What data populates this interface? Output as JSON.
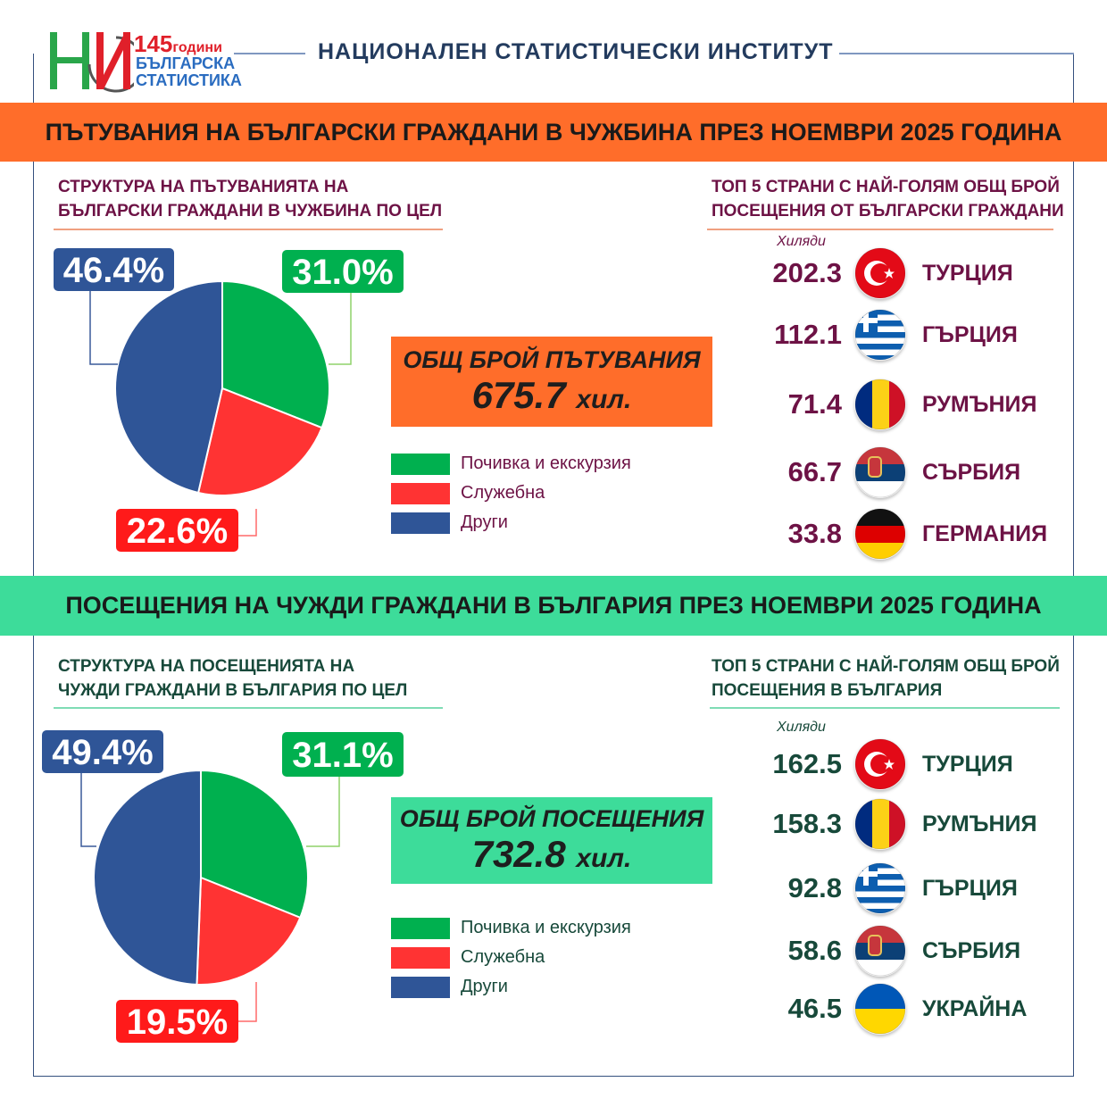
{
  "header": {
    "institute": "НАЦИОНАЛЕН СТАТИСТИЧЕСКИ ИНСТИТУТ",
    "logo_text": [
      "145",
      "години",
      "БЪЛГАРСКА",
      "СТАТИСТИКА"
    ]
  },
  "section1": {
    "title_normal": "ПЪТУВАНИЯ НА БЪЛГАРСКИ ГРАЖДАНИ В ЧУЖБИНА ПРЕЗ ",
    "title_bold": "НОЕМВРИ 2025 ГОДИНА",
    "pie_title": [
      "СТРУКТУРА НА ПЪТУВАНИЯТА НА",
      "БЪЛГАРСКИ ГРАЖДАНИ В ЧУЖБИНА ПО ЦЕЛ"
    ],
    "total_label": "ОБЩ БРОЙ ПЪТУВАНИЯ",
    "total_value": "675.7",
    "total_unit": "хил.",
    "top_title": [
      "ТОП 5 СТРАНИ С НАЙ-ГОЛЯМ ОБЩ БРОЙ",
      "ПОСЕЩЕНИЯ ОТ БЪЛГАРСКИ ГРАЖДАНИ"
    ],
    "unit": "Хиляди",
    "top5": [
      {
        "value": "202.3",
        "country": "ТУРЦИЯ",
        "flag": "turkey-flag"
      },
      {
        "value": "112.1",
        "country": "ГЪРЦИЯ",
        "flag": "greece-flag"
      },
      {
        "value": "71.4",
        "country": "РУМЪНИЯ",
        "flag": "romania-flag"
      },
      {
        "value": "66.7",
        "country": "СЪРБИЯ",
        "flag": "serbia-flag"
      },
      {
        "value": "33.8",
        "country": "ГЕРМАНИЯ",
        "flag": "germany-flag"
      }
    ],
    "text_color": "#6d1245",
    "accent": "#ff6d2a"
  },
  "section2": {
    "title_normal": "ПОСЕЩЕНИЯ НА ЧУЖДИ ГРАЖДАНИ В БЪЛГАРИЯ ПРЕЗ ",
    "title_bold": "НОЕМВРИ 2025 ГОДИНА",
    "pie_title": [
      "СТРУКТУРА НА ПОСЕЩЕНИЯТА НА",
      "ЧУЖДИ ГРАЖДАНИ В БЪЛГАРИЯ ПО ЦЕЛ"
    ],
    "total_label": "ОБЩ БРОЙ ПОСЕЩЕНИЯ",
    "total_value": "732.8",
    "total_unit": "хил.",
    "top_title": [
      "ТОП 5 СТРАНИ С НАЙ-ГОЛЯМ ОБЩ БРОЙ",
      "ПОСЕЩЕНИЯ В БЪЛГАРИЯ"
    ],
    "unit": "Хиляди",
    "top5": [
      {
        "value": "162.5",
        "country": "ТУРЦИЯ",
        "flag": "turkey-flag"
      },
      {
        "value": "158.3",
        "country": "РУМЪНИЯ",
        "flag": "romania-flag"
      },
      {
        "value": "92.8",
        "country": "ГЪРЦИЯ",
        "flag": "greece-flag"
      },
      {
        "value": "58.6",
        "country": "СЪРБИЯ",
        "flag": "serbia-flag"
      },
      {
        "value": "46.5",
        "country": "УКРАЙНА",
        "flag": "ukraine-flag"
      }
    ],
    "text_color": "#17493a",
    "accent": "#3ddc9a"
  },
  "chart_data": [
    {
      "type": "pie",
      "categories": [
        "Почивка и екскурзия",
        "Служебна",
        "Други"
      ],
      "values": [
        31.0,
        22.6,
        46.4
      ],
      "labels": [
        "31.0%",
        "22.6%",
        "46.4%"
      ],
      "colors": [
        "#00b04f",
        "#ff3333",
        "#2f5597"
      ],
      "legend": "right"
    },
    {
      "type": "pie",
      "categories": [
        "Почивка и екскурзия",
        "Служебна",
        "Други"
      ],
      "values": [
        31.1,
        19.5,
        49.4
      ],
      "labels": [
        "31.1%",
        "19.5%",
        "49.4%"
      ],
      "colors": [
        "#00b04f",
        "#ff3333",
        "#2f5597"
      ],
      "legend": "right"
    }
  ]
}
